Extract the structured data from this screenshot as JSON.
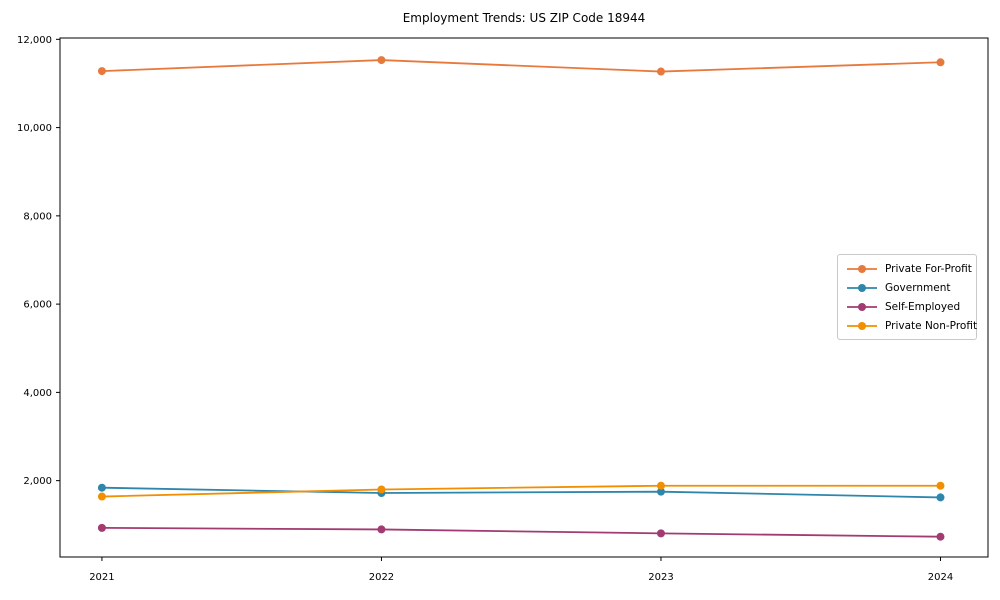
{
  "chart_data": {
    "type": "line",
    "title": "Employment Trends: US ZIP Code 18944",
    "x": [
      2021,
      2022,
      2023,
      2024
    ],
    "xticklabels": [
      "2021",
      "2022",
      "2023",
      "2024"
    ],
    "yticks": [
      2000,
      4000,
      6000,
      8000,
      10000,
      12000
    ],
    "yticklabels": [
      "2,000",
      "4,000",
      "6,000",
      "8,000",
      "10,000",
      "12,000"
    ],
    "xlim": [
      2020.85,
      2024.17
    ],
    "ylim": [
      270,
      12030
    ],
    "grid": false,
    "legend_position": "center-right",
    "series": [
      {
        "name": "Private For-Profit",
        "color": "#E8793D",
        "values": [
          11280,
          11530,
          11270,
          11480
        ]
      },
      {
        "name": "Government",
        "color": "#2E86AB",
        "values": [
          1840,
          1720,
          1750,
          1620
        ]
      },
      {
        "name": "Self-Employed",
        "color": "#A23B72",
        "values": [
          930,
          895,
          805,
          730
        ]
      },
      {
        "name": "Private Non-Profit",
        "color": "#F18F01",
        "values": [
          1640,
          1800,
          1885,
          1885
        ]
      }
    ],
    "axis_color": "#000000",
    "background_color": "#ffffff"
  }
}
